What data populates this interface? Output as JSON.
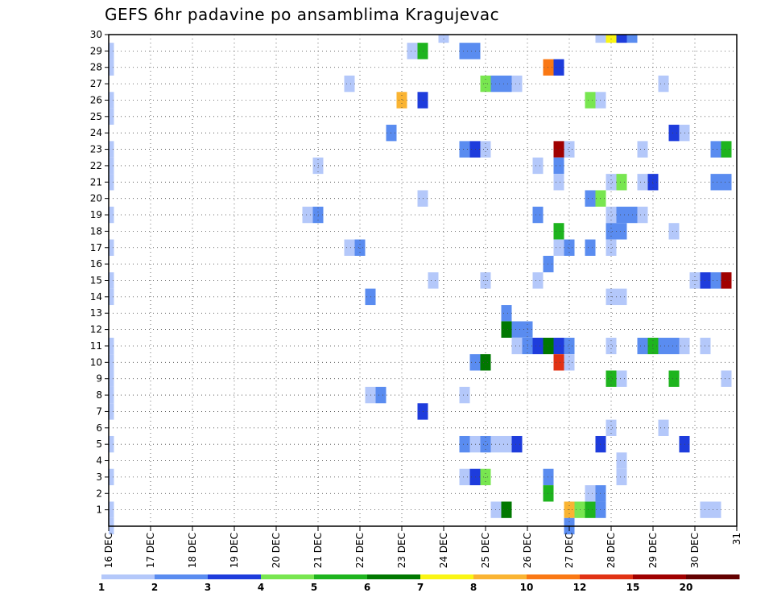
{
  "chart_data": {
    "type": "heatmap",
    "title": "GEFS 6hr padavine po ansamblima Kragujevac",
    "x_ticks": [
      "16 DEC",
      "17 DEC",
      "18 DEC",
      "19 DEC",
      "20 DEC",
      "21 DEC",
      "22 DEC",
      "23 DEC",
      "24 DEC",
      "25 DEC",
      "26 DEC",
      "27 DEC",
      "28 DEC",
      "29 DEC",
      "30 DEC",
      "31"
    ],
    "y_ticks": [
      "1",
      "2",
      "3",
      "4",
      "5",
      "6",
      "7",
      "8",
      "9",
      "10",
      "11",
      "12",
      "13",
      "14",
      "15",
      "16",
      "17",
      "18",
      "19",
      "20",
      "21",
      "22",
      "23",
      "24",
      "25",
      "26",
      "27",
      "28",
      "29",
      "30"
    ],
    "ylim": [
      0,
      30
    ],
    "steps_per_day": 4,
    "num_steps": 61,
    "grid": true,
    "legend": {
      "placement": "bottom",
      "labels": [
        "1",
        "2",
        "3",
        "4",
        "5",
        "6",
        "7",
        "8",
        "10",
        "12",
        "15",
        "20"
      ],
      "colors": [
        "#b4c8fa",
        "#5a8cf0",
        "#1e3cdc",
        "#78e650",
        "#1eb41e",
        "#007800",
        "#faf514",
        "#fab432",
        "#fa7814",
        "#e13214",
        "#a00000",
        "#640000"
      ]
    },
    "cells": [
      {
        "step": 0,
        "member": 0,
        "value": 1
      },
      {
        "step": 0,
        "member": 1,
        "value": 1
      },
      {
        "step": 0,
        "member": 3,
        "value": 1
      },
      {
        "step": 0,
        "member": 5,
        "value": 1
      },
      {
        "step": 0,
        "member": 7,
        "value": 1
      },
      {
        "step": 0,
        "member": 8,
        "value": 1
      },
      {
        "step": 0,
        "member": 9,
        "value": 1
      },
      {
        "step": 0,
        "member": 10,
        "value": 1
      },
      {
        "step": 0,
        "member": 11,
        "value": 1
      },
      {
        "step": 0,
        "member": 14,
        "value": 1
      },
      {
        "step": 0,
        "member": 15,
        "value": 1
      },
      {
        "step": 0,
        "member": 17,
        "value": 1
      },
      {
        "step": 0,
        "member": 19,
        "value": 1
      },
      {
        "step": 0,
        "member": 21,
        "value": 1
      },
      {
        "step": 0,
        "member": 22,
        "value": 1
      },
      {
        "step": 0,
        "member": 23,
        "value": 1
      },
      {
        "step": 0,
        "member": 25,
        "value": 1
      },
      {
        "step": 0,
        "member": 26,
        "value": 1
      },
      {
        "step": 0,
        "member": 28,
        "value": 1
      },
      {
        "step": 0,
        "member": 29,
        "value": 1
      },
      {
        "step": 20,
        "member": 22,
        "value": 1
      },
      {
        "step": 19,
        "member": 19,
        "value": 1
      },
      {
        "step": 20,
        "member": 19,
        "value": 2
      },
      {
        "step": 23,
        "member": 27,
        "value": 1
      },
      {
        "step": 23,
        "member": 17,
        "value": 1
      },
      {
        "step": 24,
        "member": 17,
        "value": 2
      },
      {
        "step": 25,
        "member": 8,
        "value": 1
      },
      {
        "step": 26,
        "member": 8,
        "value": 2
      },
      {
        "step": 25,
        "member": 14,
        "value": 2
      },
      {
        "step": 27,
        "member": 24,
        "value": 2
      },
      {
        "step": 28,
        "member": 26,
        "value": 8
      },
      {
        "step": 29,
        "member": 29,
        "value": 1
      },
      {
        "step": 30,
        "member": 29,
        "value": 5
      },
      {
        "step": 30,
        "member": 26,
        "value": 3
      },
      {
        "step": 30,
        "member": 20,
        "value": 1
      },
      {
        "step": 30,
        "member": 7,
        "value": 3
      },
      {
        "step": 31,
        "member": 15,
        "value": 1
      },
      {
        "step": 32,
        "member": 30,
        "value": 1
      },
      {
        "step": 34,
        "member": 29,
        "value": 2
      },
      {
        "step": 35,
        "member": 29,
        "value": 2
      },
      {
        "step": 34,
        "member": 23,
        "value": 2
      },
      {
        "step": 35,
        "member": 23,
        "value": 3
      },
      {
        "step": 36,
        "member": 23,
        "value": 1
      },
      {
        "step": 34,
        "member": 8,
        "value": 1
      },
      {
        "step": 34,
        "member": 5,
        "value": 2
      },
      {
        "step": 35,
        "member": 5,
        "value": 1
      },
      {
        "step": 36,
        "member": 5,
        "value": 2
      },
      {
        "step": 37,
        "member": 5,
        "value": 1
      },
      {
        "step": 38,
        "member": 5,
        "value": 1
      },
      {
        "step": 34,
        "member": 3,
        "value": 1
      },
      {
        "step": 35,
        "member": 3,
        "value": 3
      },
      {
        "step": 36,
        "member": 3,
        "value": 4
      },
      {
        "step": 35,
        "member": 10,
        "value": 2
      },
      {
        "step": 36,
        "member": 10,
        "value": 6
      },
      {
        "step": 36,
        "member": 15,
        "value": 1
      },
      {
        "step": 36,
        "member": 27,
        "value": 4
      },
      {
        "step": 37,
        "member": 27,
        "value": 2
      },
      {
        "step": 38,
        "member": 27,
        "value": 2
      },
      {
        "step": 39,
        "member": 27,
        "value": 1
      },
      {
        "step": 37,
        "member": 1,
        "value": 1
      },
      {
        "step": 38,
        "member": 1,
        "value": 6
      },
      {
        "step": 38,
        "member": 13,
        "value": 2
      },
      {
        "step": 38,
        "member": 12,
        "value": 6
      },
      {
        "step": 39,
        "member": 12,
        "value": 2
      },
      {
        "step": 40,
        "member": 12,
        "value": 2
      },
      {
        "step": 39,
        "member": 11,
        "value": 1
      },
      {
        "step": 40,
        "member": 11,
        "value": 2
      },
      {
        "step": 41,
        "member": 11,
        "value": 3
      },
      {
        "step": 42,
        "member": 11,
        "value": 6
      },
      {
        "step": 43,
        "member": 11,
        "value": 3
      },
      {
        "step": 44,
        "member": 11,
        "value": 2
      },
      {
        "step": 39,
        "member": 5,
        "value": 3
      },
      {
        "step": 41,
        "member": 22,
        "value": 1
      },
      {
        "step": 41,
        "member": 19,
        "value": 2
      },
      {
        "step": 41,
        "member": 15,
        "value": 1
      },
      {
        "step": 42,
        "member": 28,
        "value": 10
      },
      {
        "step": 43,
        "member": 28,
        "value": 3
      },
      {
        "step": 42,
        "member": 16,
        "value": 2
      },
      {
        "step": 42,
        "member": 3,
        "value": 2
      },
      {
        "step": 42,
        "member": 2,
        "value": 5
      },
      {
        "step": 43,
        "member": 23,
        "value": 15
      },
      {
        "step": 44,
        "member": 23,
        "value": 1
      },
      {
        "step": 43,
        "member": 22,
        "value": 2
      },
      {
        "step": 43,
        "member": 21,
        "value": 1
      },
      {
        "step": 43,
        "member": 18,
        "value": 5
      },
      {
        "step": 43,
        "member": 17,
        "value": 1
      },
      {
        "step": 44,
        "member": 17,
        "value": 2
      },
      {
        "step": 43,
        "member": 10,
        "value": 12
      },
      {
        "step": 44,
        "member": 10,
        "value": 1
      },
      {
        "step": 44,
        "member": 1,
        "value": 8
      },
      {
        "step": 45,
        "member": 1,
        "value": 4
      },
      {
        "step": 46,
        "member": 1,
        "value": 5
      },
      {
        "step": 47,
        "member": 1,
        "value": 2
      },
      {
        "step": 44,
        "member": 0,
        "value": 2
      },
      {
        "step": 46,
        "member": 26,
        "value": 4
      },
      {
        "step": 47,
        "member": 26,
        "value": 1
      },
      {
        "step": 46,
        "member": 20,
        "value": 2
      },
      {
        "step": 47,
        "member": 20,
        "value": 4
      },
      {
        "step": 46,
        "member": 17,
        "value": 2
      },
      {
        "step": 47,
        "member": 5,
        "value": 3
      },
      {
        "step": 46,
        "member": 2,
        "value": 1
      },
      {
        "step": 47,
        "member": 2,
        "value": 2
      },
      {
        "step": 47,
        "member": 30,
        "value": 1
      },
      {
        "step": 48,
        "member": 30,
        "value": 7
      },
      {
        "step": 49,
        "member": 30,
        "value": 3
      },
      {
        "step": 50,
        "member": 30,
        "value": 2
      },
      {
        "step": 48,
        "member": 21,
        "value": 1
      },
      {
        "step": 49,
        "member": 21,
        "value": 4
      },
      {
        "step": 48,
        "member": 19,
        "value": 1
      },
      {
        "step": 49,
        "member": 19,
        "value": 2
      },
      {
        "step": 50,
        "member": 19,
        "value": 2
      },
      {
        "step": 51,
        "member": 19,
        "value": 1
      },
      {
        "step": 48,
        "member": 18,
        "value": 2
      },
      {
        "step": 49,
        "member": 18,
        "value": 2
      },
      {
        "step": 48,
        "member": 17,
        "value": 1
      },
      {
        "step": 48,
        "member": 14,
        "value": 1
      },
      {
        "step": 49,
        "member": 14,
        "value": 1
      },
      {
        "step": 48,
        "member": 11,
        "value": 1
      },
      {
        "step": 48,
        "member": 9,
        "value": 5
      },
      {
        "step": 49,
        "member": 9,
        "value": 1
      },
      {
        "step": 48,
        "member": 6,
        "value": 1
      },
      {
        "step": 49,
        "member": 4,
        "value": 1
      },
      {
        "step": 49,
        "member": 3,
        "value": 1
      },
      {
        "step": 51,
        "member": 23,
        "value": 1
      },
      {
        "step": 51,
        "member": 21,
        "value": 1
      },
      {
        "step": 52,
        "member": 21,
        "value": 3
      },
      {
        "step": 51,
        "member": 11,
        "value": 2
      },
      {
        "step": 52,
        "member": 11,
        "value": 5
      },
      {
        "step": 53,
        "member": 11,
        "value": 2
      },
      {
        "step": 54,
        "member": 11,
        "value": 2
      },
      {
        "step": 55,
        "member": 11,
        "value": 1
      },
      {
        "step": 53,
        "member": 27,
        "value": 1
      },
      {
        "step": 54,
        "member": 24,
        "value": 3
      },
      {
        "step": 55,
        "member": 24,
        "value": 1
      },
      {
        "step": 54,
        "member": 18,
        "value": 1
      },
      {
        "step": 54,
        "member": 9,
        "value": 5
      },
      {
        "step": 53,
        "member": 6,
        "value": 1
      },
      {
        "step": 55,
        "member": 5,
        "value": 3
      },
      {
        "step": 56,
        "member": 15,
        "value": 1
      },
      {
        "step": 57,
        "member": 15,
        "value": 3
      },
      {
        "step": 58,
        "member": 15,
        "value": 2
      },
      {
        "step": 59,
        "member": 15,
        "value": 15
      },
      {
        "step": 57,
        "member": 11,
        "value": 1
      },
      {
        "step": 57,
        "member": 1,
        "value": 1
      },
      {
        "step": 58,
        "member": 1,
        "value": 1
      },
      {
        "step": 58,
        "member": 23,
        "value": 2
      },
      {
        "step": 59,
        "member": 23,
        "value": 5
      },
      {
        "step": 58,
        "member": 21,
        "value": 2
      },
      {
        "step": 59,
        "member": 21,
        "value": 2
      },
      {
        "step": 59,
        "member": 9,
        "value": 1
      }
    ]
  }
}
